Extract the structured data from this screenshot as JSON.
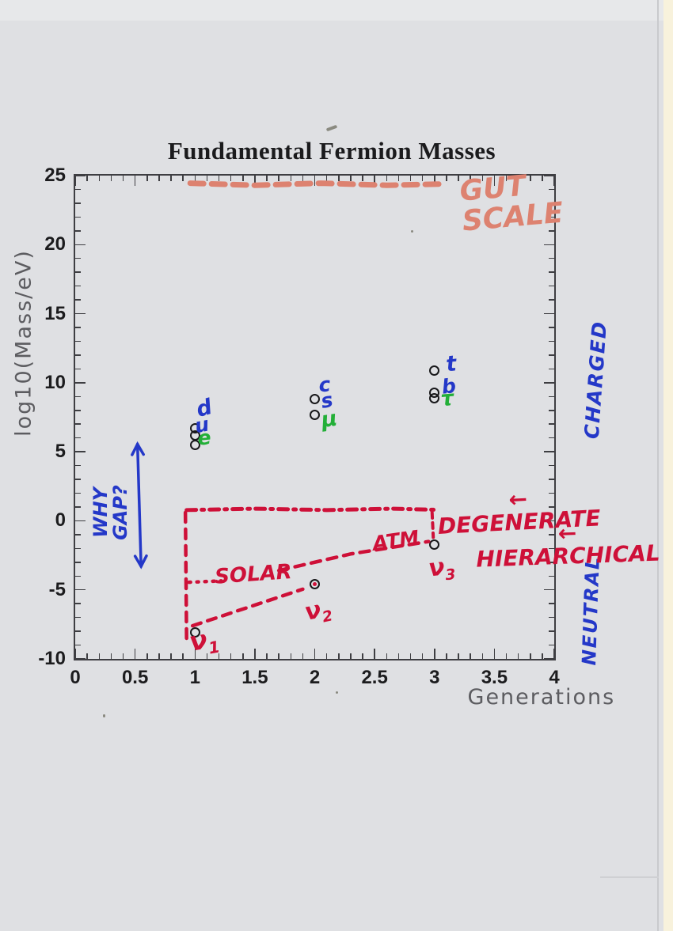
{
  "palette": {
    "salmon": "#dd8270",
    "crimson": "#ce1038",
    "blue": "#2438c8",
    "green": "#23af38",
    "axis": "#3e3e42"
  },
  "chart_data": {
    "type": "scatter",
    "title": "Fundamental Fermion Masses",
    "xlabel": "Generations",
    "ylabel": "log10(Mass/eV)",
    "xlim": [
      0,
      4
    ],
    "ylim": [
      -10,
      25
    ],
    "x_tick_labels": [
      "0",
      "0.5",
      "1",
      "1.5",
      "2",
      "2.5",
      "3",
      "3.5",
      "4"
    ],
    "y_tick_labels": [
      "-10",
      "-5",
      "0",
      "5",
      "10",
      "15",
      "20",
      "25"
    ],
    "x_minor_step": 0.1,
    "y_minor_step": 1,
    "grid": false,
    "series": [
      {
        "name": "charged-fermions",
        "marker": "open-circle",
        "points": [
          {
            "x": 1,
            "y": 6.7,
            "particle": "d"
          },
          {
            "x": 1,
            "y": 6.2,
            "particle": "u"
          },
          {
            "x": 1,
            "y": 5.5,
            "particle": "e"
          },
          {
            "x": 2,
            "y": 8.8,
            "particle": "c"
          },
          {
            "x": 2,
            "y": 7.7,
            "particle": "s (μ overlaps)"
          },
          {
            "x": 3,
            "y": 10.9,
            "particle": "t"
          },
          {
            "x": 3,
            "y": 9.3,
            "particle": "b"
          },
          {
            "x": 3,
            "y": 8.85,
            "particle": "τ"
          }
        ]
      },
      {
        "name": "neutrinos",
        "marker": "open-circle",
        "points": [
          {
            "x": 1,
            "y": -8.1,
            "particle": "ν1"
          },
          {
            "x": 2,
            "y": -4.6,
            "particle": "ν2",
            "dot": true
          },
          {
            "x": 3,
            "y": -1.7,
            "particle": "ν3"
          }
        ]
      }
    ],
    "lines": [
      {
        "id": "gut-scale-line",
        "color": "salmon",
        "width": 7,
        "dash": "17 10",
        "points": [
          [
            0.96,
            24.45
          ],
          [
            1.5,
            24.3
          ],
          [
            2.05,
            24.45
          ],
          [
            2.6,
            24.3
          ],
          [
            3.1,
            24.4
          ]
        ]
      },
      {
        "id": "degenerate-line",
        "color": "crimson",
        "width": 5,
        "dash": "12 7 3 7",
        "points": [
          [
            0.93,
            0.78
          ],
          [
            1.5,
            0.88
          ],
          [
            2.1,
            0.78
          ],
          [
            2.65,
            0.88
          ],
          [
            3.0,
            0.8
          ]
        ]
      },
      {
        "id": "left-dashed-vertical",
        "color": "crimson",
        "width": 4.5,
        "dash": "12 9",
        "points": [
          [
            0.92,
            0.6
          ],
          [
            0.93,
            -8.6
          ]
        ]
      },
      {
        "id": "right-dashed-vertical",
        "color": "crimson",
        "width": 4,
        "dash": "7 6",
        "points": [
          [
            2.98,
            0.6
          ],
          [
            2.99,
            -1.2
          ]
        ]
      },
      {
        "id": "solar-dotted-line",
        "color": "crimson",
        "width": 4.5,
        "dash": "2 8",
        "points": [
          [
            0.95,
            -4.45
          ],
          [
            1.22,
            -4.35
          ]
        ]
      },
      {
        "id": "atm-dashed-line",
        "color": "crimson",
        "width": 4.5,
        "dash": "12 9",
        "points": [
          [
            1.7,
            -3.6
          ],
          [
            2.3,
            -2.4
          ],
          [
            2.95,
            -1.5
          ]
        ]
      },
      {
        "id": "nu1-nu2-dashed-line",
        "color": "crimson",
        "width": 4.5,
        "dash": "11 9",
        "points": [
          [
            0.98,
            -7.6
          ],
          [
            1.9,
            -4.95
          ]
        ]
      },
      {
        "id": "why-gap-arrow",
        "color": "blue",
        "width": 3.5,
        "dash": "",
        "points": [
          [
            0.52,
            5.55
          ],
          [
            0.55,
            -3.3
          ]
        ],
        "arrows": "both"
      }
    ],
    "annotations": [
      {
        "id": "gut-scale-label",
        "text": "GUT\nSCALE",
        "color": "salmon",
        "x": 3.64,
        "y": 23.05,
        "size": 36,
        "rotate": -5,
        "align": "left"
      },
      {
        "id": "why-gap-label",
        "text": "WHY\nGAP?",
        "color": "blue",
        "x": 0.3,
        "y": 0.6,
        "size": 24,
        "rotate": -90
      },
      {
        "id": "charged-label",
        "text": "CHARGED",
        "color": "blue",
        "x": 4.35,
        "y": 10.2,
        "size": 25,
        "rotate": -86,
        "spacing": 2
      },
      {
        "id": "neutral-label",
        "text": "NEUTRAL",
        "color": "blue",
        "x": 4.31,
        "y": -6.5,
        "size": 24,
        "rotate": -88,
        "spacing": 2
      },
      {
        "id": "degenerate-label",
        "text": "← DEGENERATE",
        "color": "crimson",
        "x": 3.7,
        "y": 0.7,
        "size": 28,
        "rotate": -3
      },
      {
        "id": "hierarchical-label",
        "text": "← HIERARCHICAL",
        "color": "crimson",
        "x": 4.11,
        "y": -1.75,
        "size": 28,
        "rotate": -2
      },
      {
        "id": "solar-label",
        "text": "SOLAR",
        "color": "crimson",
        "x": 1.49,
        "y": -3.95,
        "size": 26,
        "rotate": -4
      },
      {
        "id": "atm-label",
        "text": "ATM",
        "color": "crimson",
        "x": 2.68,
        "y": -1.45,
        "size": 25,
        "rotate": -8
      },
      {
        "id": "nu1-label",
        "text": "ν",
        "sub": "1",
        "color": "crimson",
        "x": 1.08,
        "y": -8.8,
        "size": 33,
        "rotate": -10
      },
      {
        "id": "nu2-label",
        "text": "ν",
        "sub": "2",
        "color": "crimson",
        "x": 2.03,
        "y": -6.6,
        "size": 30,
        "rotate": -12
      },
      {
        "id": "nu3-label",
        "text": "ν",
        "sub": "3",
        "color": "crimson",
        "x": 3.06,
        "y": -3.5,
        "size": 30,
        "rotate": -6
      },
      {
        "id": "d-label",
        "text": "d",
        "color": "blue",
        "x": 1.08,
        "y": 8.1,
        "size": 27,
        "rotate": -15
      },
      {
        "id": "u-label",
        "text": "u",
        "color": "blue",
        "x": 1.06,
        "y": 6.9,
        "size": 25,
        "rotate": -10
      },
      {
        "id": "e-label",
        "text": "e",
        "color": "green",
        "x": 1.08,
        "y": 6.0,
        "size": 25,
        "rotate": -5
      },
      {
        "id": "c-label",
        "text": "c",
        "color": "blue",
        "x": 2.08,
        "y": 9.8,
        "size": 25,
        "rotate": -5
      },
      {
        "id": "s-label",
        "text": "s",
        "color": "blue",
        "x": 2.1,
        "y": 8.7,
        "size": 25,
        "rotate": -10
      },
      {
        "id": "mu-label",
        "text": "μ",
        "color": "green",
        "x": 2.12,
        "y": 7.3,
        "size": 27,
        "rotate": -8
      },
      {
        "id": "t-label",
        "text": "t",
        "color": "blue",
        "x": 3.14,
        "y": 11.3,
        "size": 27,
        "rotate": -6
      },
      {
        "id": "b-label",
        "text": "b",
        "color": "blue",
        "x": 3.12,
        "y": 9.7,
        "size": 25,
        "rotate": -6
      },
      {
        "id": "tau-label",
        "text": "τ",
        "color": "green",
        "x": 3.11,
        "y": 8.8,
        "size": 26,
        "rotate": -5
      }
    ]
  }
}
